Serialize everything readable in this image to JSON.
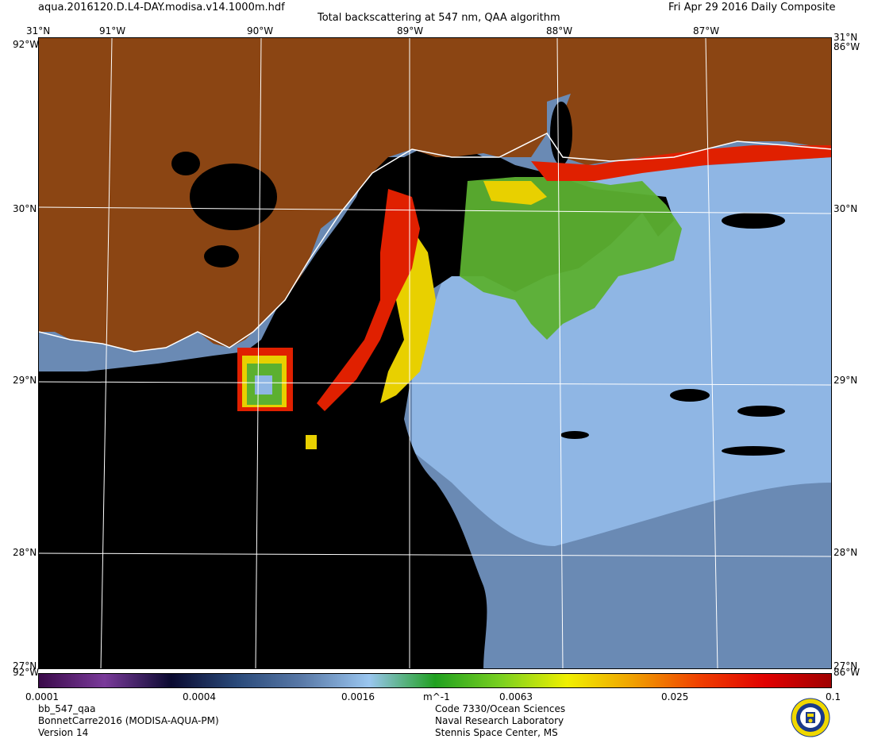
{
  "header": {
    "filename": "aqua.2016120.D.L4-DAY.modisa.v14.1000m.hdf",
    "title": "Total backscattering at 547 nm, QAA algorithm",
    "date": "Fri Apr 29 2016 Daily Composite"
  },
  "axes": {
    "lon_labels": [
      "91°W",
      "90°W",
      "89°W",
      "88°W",
      "87°W"
    ],
    "lat_labels": [
      "30°N",
      "29°N",
      "28°N"
    ],
    "corner_top_lat": "31°N",
    "corner_top_lon": "92°W",
    "corner_top_lon_right": "86°W",
    "corner_bottom_lat": "27°N",
    "corner_bottom_lon": "92°W",
    "corner_bottom_lon_right": "86°W"
  },
  "colorbar": {
    "unit": "m^-1",
    "ticks": [
      "0.0001",
      "0.0004",
      "0.0016",
      "0.0063",
      "0.025",
      "0.1"
    ],
    "scale": "log",
    "range": [
      0.0001,
      0.1
    ],
    "colors": [
      "#3a0a4a",
      "#7a3a9a",
      "#0a0a30",
      "#2a4a7a",
      "#5a7aa8",
      "#9ac6f0",
      "#20a020",
      "#7ad020",
      "#f0f000",
      "#f0a000",
      "#f04000",
      "#e00000",
      "#a00000"
    ]
  },
  "map": {
    "colors": {
      "land": "#8b4513",
      "no_data": "#000000",
      "offshore_water": "#8fb6e4",
      "deep_water": "#6a8ab4",
      "green_plume": "#5cb030",
      "yellow_plume": "#e8d000",
      "red_plume": "#e02000",
      "graticule": "#ffffff"
    }
  },
  "footer": {
    "product": "bb_547_qaa",
    "dataset": "BonnetCarre2016 (MODISA-AQUA-PM)",
    "version": "Version 14",
    "org_line1": "Code 7330/Ocean Sciences",
    "org_line2": "Naval Research Laboratory",
    "org_line3": "Stennis Space Center, MS"
  }
}
